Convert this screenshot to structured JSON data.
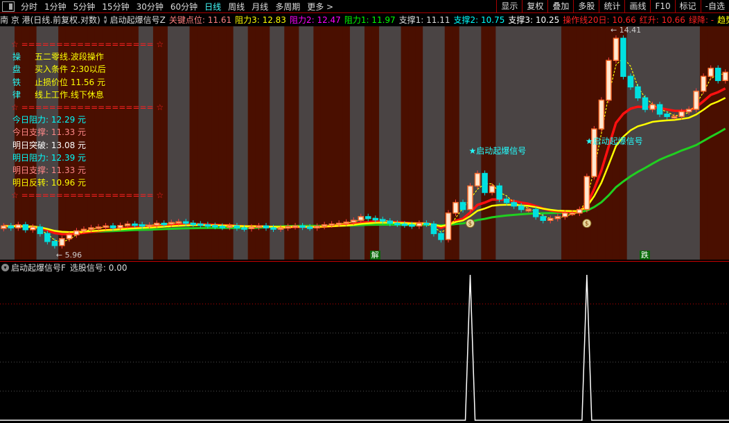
{
  "toolbar": {
    "periods": [
      "分时",
      "1分钟",
      "5分钟",
      "15分钟",
      "30分钟",
      "60分钟",
      "日线",
      "周线",
      "月线",
      "多周期",
      "更多 >"
    ],
    "active": "日线",
    "right": [
      "显示",
      "复权",
      "叠加",
      "多股",
      "统计",
      "画线",
      "F10",
      "标记",
      "-自选"
    ]
  },
  "info": {
    "stock": "南 京 港(日线.前复权.对数)",
    "indicator": "启动起爆信号Z",
    "items": [
      {
        "label": "关键点位: 11.61",
        "color": "#ff8080"
      },
      {
        "label": "阻力3: 12.83",
        "color": "#ffff00"
      },
      {
        "label": "阻力2: 12.47",
        "color": "#ff00ff"
      },
      {
        "label": "阻力1: 11.97",
        "color": "#00ff00"
      },
      {
        "label": "支撑1: 11.11",
        "color": "#dddddd"
      },
      {
        "label": "支撑2: 10.75",
        "color": "#00ffff"
      },
      {
        "label": "支撑3: 10.25",
        "color": "#ffffff"
      },
      {
        "label": "操作线20日: 10.66",
        "color": "#ff2020"
      },
      {
        "label": "红升: 10.66",
        "color": "#ff2020"
      },
      {
        "label": "绿降: -",
        "color": "#ff2020"
      },
      {
        "label": "趋势线",
        "color": "#ffff00"
      }
    ]
  },
  "panel": {
    "divider": "☆ =================== ☆",
    "rules": [
      {
        "k": "操",
        "v": "五二零线.波段操作"
      },
      {
        "k": "盘",
        "v": "买入条件 2:30以后"
      },
      {
        "k": "铁",
        "v": "止损价位 11.56 元"
      },
      {
        "k": "律",
        "v": "线上工作.线下休息"
      }
    ],
    "levels": [
      {
        "label": "今日阻力: 12.29 元",
        "color": "#00ffff"
      },
      {
        "label": "今日支撑: 11.33 元",
        "color": "#ff8888"
      },
      {
        "label": "明日突破: 13.08 元",
        "color": "#ffffff"
      },
      {
        "label": "明日阻力: 12.39 元",
        "color": "#00ffff"
      },
      {
        "label": "明日支撑: 11.33 元",
        "color": "#ff8888"
      },
      {
        "label": "明日反转: 10.96 元",
        "color": "#ffff00"
      }
    ]
  },
  "chart_data": [
    {
      "type": "candlestick",
      "scale": "log",
      "high_label": "14.41",
      "low_label": "5.96",
      "close": [
        6.55,
        6.5,
        6.58,
        6.45,
        6.52,
        6.35,
        6.15,
        6.05,
        6.22,
        6.32,
        6.42,
        6.46,
        6.5,
        6.52,
        6.55,
        6.5,
        6.56,
        6.6,
        6.58,
        6.55,
        6.57,
        6.62,
        6.6,
        6.64,
        6.66,
        6.62,
        6.6,
        6.58,
        6.56,
        6.54,
        6.52,
        6.55,
        6.5,
        6.48,
        6.52,
        6.55,
        6.5,
        6.47,
        6.5,
        6.53,
        6.55,
        6.52,
        6.5,
        6.54,
        6.58,
        6.6,
        6.62,
        6.65,
        6.7,
        6.8,
        6.75,
        6.72,
        6.68,
        6.62,
        6.6,
        6.58,
        6.55,
        6.62,
        6.6,
        6.35,
        6.2,
        6.9,
        7.2,
        7.0,
        7.7,
        8.1,
        7.5,
        7.7,
        7.3,
        7.2,
        7.1,
        7.0,
        7.0,
        6.8,
        6.7,
        6.75,
        6.8,
        6.9,
        6.9,
        7.0,
        8.0,
        9.7,
        10.9,
        12.8,
        14.0,
        12.0,
        11.5,
        11.0,
        10.5,
        10.7,
        10.3,
        10.2,
        10.2,
        10.4,
        10.5,
        11.3,
        12.0,
        12.4,
        11.8,
        12.2
      ],
      "background_state": "ggrrrgggrrrrrrrrrrrggrrgggrrrrrrggrrrggrrggrrrrrggrrgggrrrgggrrgggrrgggggggggrrrrrrrrrggggggggggrrrr",
      "colors": {
        "up": "#ff7030",
        "down": "#00e0e0",
        "bg_red": "#4a0f00",
        "bg_gray": "#4a4444"
      },
      "signals": [
        {
          "index": 64,
          "label": "★启动起爆信号"
        },
        {
          "index": 80,
          "label": "★启动起爆信号"
        }
      ],
      "tags": [
        {
          "index": 51,
          "label": "解"
        },
        {
          "index": 88,
          "label": "跌"
        }
      ]
    },
    {
      "type": "line",
      "name": "选股信号",
      "ylim": [
        0,
        1
      ],
      "peaks": [
        64,
        80
      ],
      "levels": [
        0.8,
        0.6,
        0.4,
        0.2
      ]
    }
  ],
  "lower": {
    "indicator": "启动起爆信号F",
    "value": "选股信号: 0.00"
  }
}
